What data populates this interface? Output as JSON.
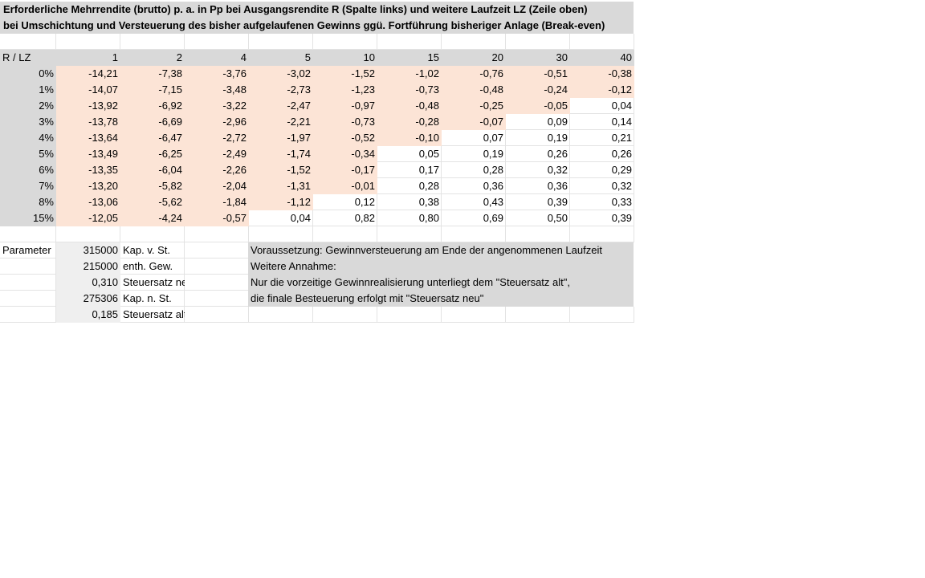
{
  "title_line1": "Erforderliche Mehrrendite (brutto) p. a. in Pp bei Ausgangsrendite R (Spalte links) und weitere Laufzeit LZ (Zeile oben)",
  "title_line2": "bei Umschichtung und Versteuerung des bisher aufgelaufenen Gewinns ggü. Fortführung bisheriger Anlage (Break-even)",
  "corner_label": "R / LZ",
  "lz_headers": [
    "1",
    "2",
    "4",
    "5",
    "10",
    "15",
    "20",
    "30",
    "40"
  ],
  "rows": [
    {
      "r": "0%",
      "values": [
        "-14,21",
        "-7,38",
        "-3,76",
        "-3,02",
        "-1,52",
        "-1,02",
        "-0,76",
        "-0,51",
        "-0,38"
      ]
    },
    {
      "r": "1%",
      "values": [
        "-14,07",
        "-7,15",
        "-3,48",
        "-2,73",
        "-1,23",
        "-0,73",
        "-0,48",
        "-0,24",
        "-0,12"
      ]
    },
    {
      "r": "2%",
      "values": [
        "-13,92",
        "-6,92",
        "-3,22",
        "-2,47",
        "-0,97",
        "-0,48",
        "-0,25",
        "-0,05",
        "0,04"
      ]
    },
    {
      "r": "3%",
      "values": [
        "-13,78",
        "-6,69",
        "-2,96",
        "-2,21",
        "-0,73",
        "-0,28",
        "-0,07",
        "0,09",
        "0,14"
      ]
    },
    {
      "r": "4%",
      "values": [
        "-13,64",
        "-6,47",
        "-2,72",
        "-1,97",
        "-0,52",
        "-0,10",
        "0,07",
        "0,19",
        "0,21"
      ]
    },
    {
      "r": "5%",
      "values": [
        "-13,49",
        "-6,25",
        "-2,49",
        "-1,74",
        "-0,34",
        "0,05",
        "0,19",
        "0,26",
        "0,26"
      ]
    },
    {
      "r": "6%",
      "values": [
        "-13,35",
        "-6,04",
        "-2,26",
        "-1,52",
        "-0,17",
        "0,17",
        "0,28",
        "0,32",
        "0,29"
      ]
    },
    {
      "r": "7%",
      "values": [
        "-13,20",
        "-5,82",
        "-2,04",
        "-1,31",
        "-0,01",
        "0,28",
        "0,36",
        "0,36",
        "0,32"
      ]
    },
    {
      "r": "8%",
      "values": [
        "-13,06",
        "-5,62",
        "-1,84",
        "-1,12",
        "0,12",
        "0,38",
        "0,43",
        "0,39",
        "0,33"
      ]
    },
    {
      "r": "15%",
      "values": [
        "-12,05",
        "-4,24",
        "-0,57",
        "0,04",
        "0,82",
        "0,80",
        "0,69",
        "0,50",
        "0,39"
      ]
    }
  ],
  "parameter_label": "Parameter",
  "params": [
    {
      "value": "315000",
      "label": "Kap. v. St."
    },
    {
      "value": "215000",
      "label": "enth. Gew."
    },
    {
      "value": "0,310",
      "label": "Steuersatz neu"
    },
    {
      "value": "275306",
      "label": "Kap. n. St."
    },
    {
      "value": "0,185",
      "label": "Steuersatz alt"
    }
  ],
  "notes": [
    "Voraussetzung: Gewinnversteuerung am Ende der angenommenen Laufzeit",
    "Weitere Annahme:",
    "Nur die vorzeitige Gewinnrealisierung unterliegt dem \"Steuersatz alt\",",
    "die finale Besteuerung erfolgt mit \"Steuersatz neu\""
  ],
  "colors": {
    "negative_fill": "#fce4d6",
    "header_fill": "#d9d9d9",
    "param_fill": "#efefef"
  }
}
